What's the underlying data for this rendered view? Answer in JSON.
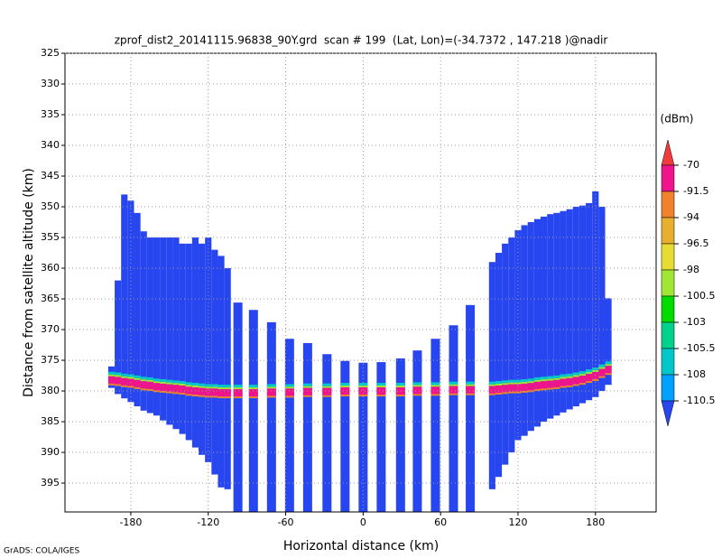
{
  "chart_data": {
    "type": "profile",
    "title": "zprof_dist2_20141115.96838_90Y.grd  scan # 199  (Lat, Lon)=(-34.7372 , 147.218 )@nadir",
    "x_label": "Horizontal distance (km)",
    "y_label": "Distance from satellite altitude (km)",
    "credit": "GrADS: COLA/IGES",
    "xlim": [
      -231,
      227
    ],
    "ylim": [
      325,
      399.7
    ],
    "y_inverted": true,
    "grid": true,
    "xticks": [
      -180,
      -120,
      -60,
      0,
      60,
      120,
      180
    ],
    "yticks": [
      325,
      330,
      335,
      340,
      345,
      350,
      355,
      360,
      365,
      370,
      375,
      380,
      385,
      390,
      395
    ],
    "colorbar": {
      "unit": "(dBm)",
      "levels": [
        -70,
        -91.5,
        -94,
        -96.5,
        -98,
        -100.5,
        -103,
        -105.5,
        -108,
        -110.5
      ],
      "colors": [
        "#f03c3c",
        "#f0148c",
        "#f0822d",
        "#e6af2d",
        "#e6dc32",
        "#a0e632",
        "#00dc00",
        "#00d28c",
        "#00c8c8",
        "#00a0ff",
        "#2846f0"
      ]
    },
    "footprints": {
      "x": [
        -195,
        -190,
        -185,
        -180,
        -175,
        -170,
        -165,
        -160,
        -155,
        -150,
        -145,
        -140,
        -135,
        -130,
        -125,
        -120,
        -115,
        -110,
        -105,
        -97,
        -85,
        -71,
        -57,
        -43,
        -28,
        -14,
        0,
        14,
        29,
        42,
        56,
        70,
        83,
        100,
        105,
        110,
        115,
        120,
        125,
        130,
        135,
        140,
        145,
        150,
        155,
        160,
        165,
        170,
        175,
        180,
        185,
        190
      ],
      "top": [
        376,
        362,
        348,
        349,
        351,
        354,
        355,
        355,
        355,
        355,
        355,
        356,
        356,
        355,
        356,
        355,
        357,
        358,
        360,
        365.6,
        366.8,
        368.8,
        371.5,
        372.2,
        374,
        375.1,
        375.4,
        375.3,
        374.7,
        373.4,
        371.5,
        369.3,
        366,
        359,
        357.5,
        356,
        355,
        353.8,
        353,
        352.5,
        352,
        351.6,
        351.2,
        351,
        350.7,
        350.4,
        350,
        349.8,
        349.4,
        347.5,
        350,
        364.9
      ],
      "bottom": [
        379.5,
        380.5,
        381.2,
        381.8,
        382.5,
        383.2,
        383.6,
        384,
        384.8,
        385.5,
        386.2,
        387,
        388,
        389.2,
        390.4,
        391.6,
        393.6,
        395.7,
        396,
        399.7,
        399.7,
        399.7,
        399.7,
        399.7,
        399.7,
        399.7,
        399.7,
        399.7,
        399.7,
        399.7,
        399.7,
        399.7,
        399.7,
        396,
        394,
        392,
        390,
        388,
        387.3,
        386.5,
        385.8,
        385,
        384.5,
        384,
        383.5,
        383,
        382.5,
        382,
        381.5,
        381,
        380,
        379
      ],
      "surface": [
        378.2,
        378.3,
        378.5,
        378.6,
        378.8,
        379,
        379.1,
        379.3,
        379.4,
        379.5,
        379.6,
        379.7,
        379.9,
        380,
        380.1,
        380.2,
        380.2,
        380.3,
        380.3,
        380.3,
        380.3,
        380.2,
        380.2,
        380.1,
        380.1,
        380,
        380,
        380,
        380,
        379.9,
        379.9,
        379.8,
        379.8,
        379.8,
        379.7,
        379.6,
        379.5,
        379.5,
        379.4,
        379.3,
        379.1,
        379,
        378.9,
        378.8,
        378.6,
        378.5,
        378.3,
        378.1,
        377.8,
        377.5,
        377,
        376.5
      ]
    }
  }
}
